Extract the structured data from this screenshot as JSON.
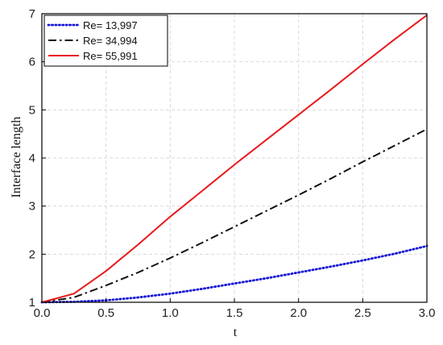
{
  "chart_data": {
    "type": "line",
    "title": "",
    "xlabel": "t",
    "ylabel": "Interface length",
    "xlim": [
      0.0,
      3.0
    ],
    "ylim": [
      1,
      7
    ],
    "x_ticks": [
      "0.0",
      "0.5",
      "1.0",
      "1.5",
      "2.0",
      "2.5",
      "3.0"
    ],
    "y_ticks": [
      "1",
      "2",
      "3",
      "4",
      "5",
      "6",
      "7"
    ],
    "grid": true,
    "legend_position": "top-left",
    "series": [
      {
        "name": "Re= 13,997",
        "color": "#1515d6",
        "style": "dotted",
        "x": [
          0.0,
          0.25,
          0.5,
          0.75,
          1.0,
          1.25,
          1.5,
          1.75,
          2.0,
          2.25,
          2.5,
          2.75,
          3.0
        ],
        "y": [
          1.0,
          1.01,
          1.04,
          1.1,
          1.18,
          1.28,
          1.39,
          1.5,
          1.62,
          1.74,
          1.87,
          2.01,
          2.17
        ]
      },
      {
        "name": "Re= 34,994",
        "color": "#111111",
        "style": "dashdot",
        "x": [
          0.0,
          0.25,
          0.5,
          0.75,
          1.0,
          1.25,
          1.5,
          1.75,
          2.0,
          2.25,
          2.5,
          2.75,
          3.0
        ],
        "y": [
          1.0,
          1.1,
          1.35,
          1.62,
          1.92,
          2.24,
          2.57,
          2.9,
          3.23,
          3.57,
          3.92,
          4.26,
          4.6
        ]
      },
      {
        "name": "Re= 55,991",
        "color": "#e8191c",
        "style": "solid",
        "x": [
          0.0,
          0.25,
          0.5,
          0.75,
          1.0,
          1.25,
          1.5,
          1.75,
          2.0,
          2.25,
          2.5,
          2.75,
          3.0
        ],
        "y": [
          1.0,
          1.18,
          1.65,
          2.2,
          2.78,
          3.32,
          3.86,
          4.38,
          4.9,
          5.42,
          5.95,
          6.47,
          6.97
        ]
      }
    ]
  }
}
